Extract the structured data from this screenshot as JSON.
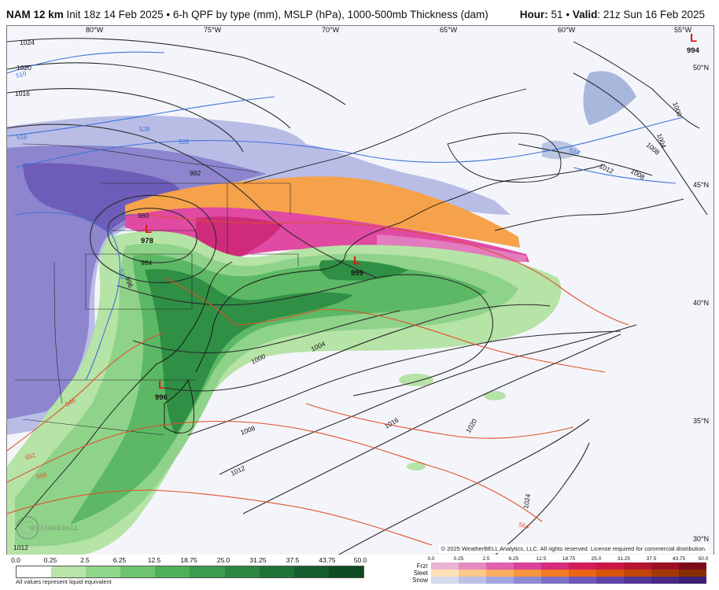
{
  "header": {
    "model": "NAM 12 km",
    "description": "Init 18z 14 Feb 2025 • 6-h QPF by type (mm), MSLP (hPa), 1000-500mb Thickness (dam)",
    "hour_label": "Hour:",
    "hour_value": "51",
    "valid_label": "Valid",
    "valid_value": "21z Sun 16 Feb 2025"
  },
  "map": {
    "lon_labels": [
      "80°W",
      "75°W",
      "70°W",
      "65°W",
      "60°W",
      "55°W"
    ],
    "lat_labels": [
      "50°N",
      "45°N",
      "40°N",
      "35°N",
      "30°N"
    ],
    "isobar_labels": [
      "1024",
      "1020",
      "1016",
      "1008",
      "1004",
      "1000",
      "1008",
      "1012",
      "1016",
      "1020",
      "1024",
      "1012",
      "1012",
      "1008",
      "1004",
      "1000",
      "984",
      "980",
      "992",
      "996"
    ],
    "thickness_labels": [
      "510",
      "516",
      "528",
      "528",
      "534",
      "546",
      "552",
      "558",
      "564",
      "522"
    ],
    "lows": [
      {
        "symbol": "L",
        "pressure": "978"
      },
      {
        "symbol": "L",
        "pressure": "999"
      },
      {
        "symbol": "L",
        "pressure": "996"
      },
      {
        "symbol": "L",
        "pressure": "994"
      }
    ],
    "copyright": "© 2025 WeatherBELL Analytics, LLC. All rights reserved. License required for commercial distribution.",
    "logo_text": "WEATHERBELL"
  },
  "legend": {
    "rain_ticks": [
      "0.0",
      "0.25",
      "2.5",
      "6.25",
      "12.5",
      "18.75",
      "25.0",
      "31.25",
      "37.5",
      "43.75",
      "50.0"
    ],
    "rain_colors": [
      "#ffffff",
      "#b7e4a8",
      "#8fd58a",
      "#6cc46e",
      "#4fb05a",
      "#3a9c4c",
      "#2b8740",
      "#1f7236",
      "#155d2c",
      "#0e4a22"
    ],
    "note": "All values represent liquid equivalent",
    "ptype_labels": [
      "Frzr",
      "Sleet",
      "Snow"
    ],
    "mix_ticks": [
      "0.0",
      "0.25",
      "2.5",
      "6.25",
      "12.5",
      "18.75",
      "25.0",
      "31.25",
      "37.5",
      "43.75",
      "50.0"
    ],
    "frzr_colors": [
      "#eab3d4",
      "#e48cc0",
      "#de62ad",
      "#d9429b",
      "#d42d7e",
      "#cf1d5c",
      "#c81845",
      "#b51433",
      "#9b1025",
      "#7d0c1b"
    ],
    "sleet_colors": [
      "#fde0b8",
      "#fbc78b",
      "#f9ad62",
      "#f7943f",
      "#f47b24",
      "#ea6414",
      "#d8530c",
      "#c04507",
      "#a43805",
      "#872c03"
    ],
    "snow_colors": [
      "#d6d9ef",
      "#bcc0e6",
      "#a3a5dd",
      "#8e8ad2",
      "#7d70c6",
      "#6d57b8",
      "#5f44a8",
      "#533596",
      "#472984",
      "#3b1f72"
    ]
  }
}
